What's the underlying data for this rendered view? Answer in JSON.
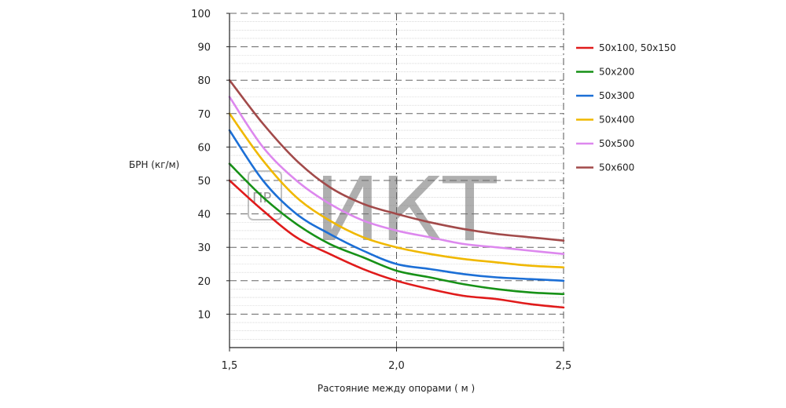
{
  "chart_data": {
    "type": "line",
    "ylabel": "БРН (кг/м)",
    "xlabel": "Растояние между опорами ( м )",
    "xlim": [
      1.5,
      2.5
    ],
    "ylim": [
      0,
      100
    ],
    "x_ticks": [
      {
        "value": 1.5,
        "label": "1,5"
      },
      {
        "value": 2.0,
        "label": "2,0"
      },
      {
        "value": 2.5,
        "label": "2,5"
      }
    ],
    "y_ticks": [
      {
        "value": 10,
        "label": "10"
      },
      {
        "value": 20,
        "label": "20"
      },
      {
        "value": 30,
        "label": "30"
      },
      {
        "value": 40,
        "label": "40"
      },
      {
        "value": 50,
        "label": "50"
      },
      {
        "value": 60,
        "label": "60"
      },
      {
        "value": 70,
        "label": "70"
      },
      {
        "value": 80,
        "label": "80"
      },
      {
        "value": 90,
        "label": "90"
      },
      {
        "value": 100,
        "label": "100"
      }
    ],
    "grid": true,
    "legend_position": "right",
    "x": [
      1.5,
      1.6,
      1.7,
      1.8,
      1.9,
      2.0,
      2.1,
      2.2,
      2.3,
      2.4,
      2.5
    ],
    "series": [
      {
        "name": "50х100, 50х150",
        "color": "#e01b1b",
        "values": [
          50,
          41,
          33,
          28,
          23.5,
          20,
          17.5,
          15.5,
          14.5,
          13,
          12
        ]
      },
      {
        "name": "50х200",
        "color": "#179117",
        "values": [
          55,
          45,
          37,
          31,
          27,
          23,
          21,
          19,
          17.5,
          16.5,
          16
        ]
      },
      {
        "name": "50х300",
        "color": "#1c6fd6",
        "values": [
          65,
          50,
          40,
          34,
          29,
          25,
          23.5,
          22,
          21,
          20.5,
          20
        ]
      },
      {
        "name": "50х400",
        "color": "#f0b800",
        "values": [
          70,
          56,
          45,
          38,
          33,
          30,
          28,
          26.5,
          25.5,
          24.5,
          24
        ]
      },
      {
        "name": "50х500",
        "color": "#dd88ee",
        "values": [
          75,
          60,
          50,
          43,
          38,
          35,
          33,
          31,
          30,
          29,
          28
        ]
      },
      {
        "name": "50х600",
        "color": "#a24a4a",
        "values": [
          80,
          67,
          56,
          48,
          43,
          40,
          37.5,
          35.5,
          34,
          33,
          32
        ]
      }
    ]
  },
  "watermark": {
    "text": "ИКТ",
    "logo_text": "ПР"
  }
}
